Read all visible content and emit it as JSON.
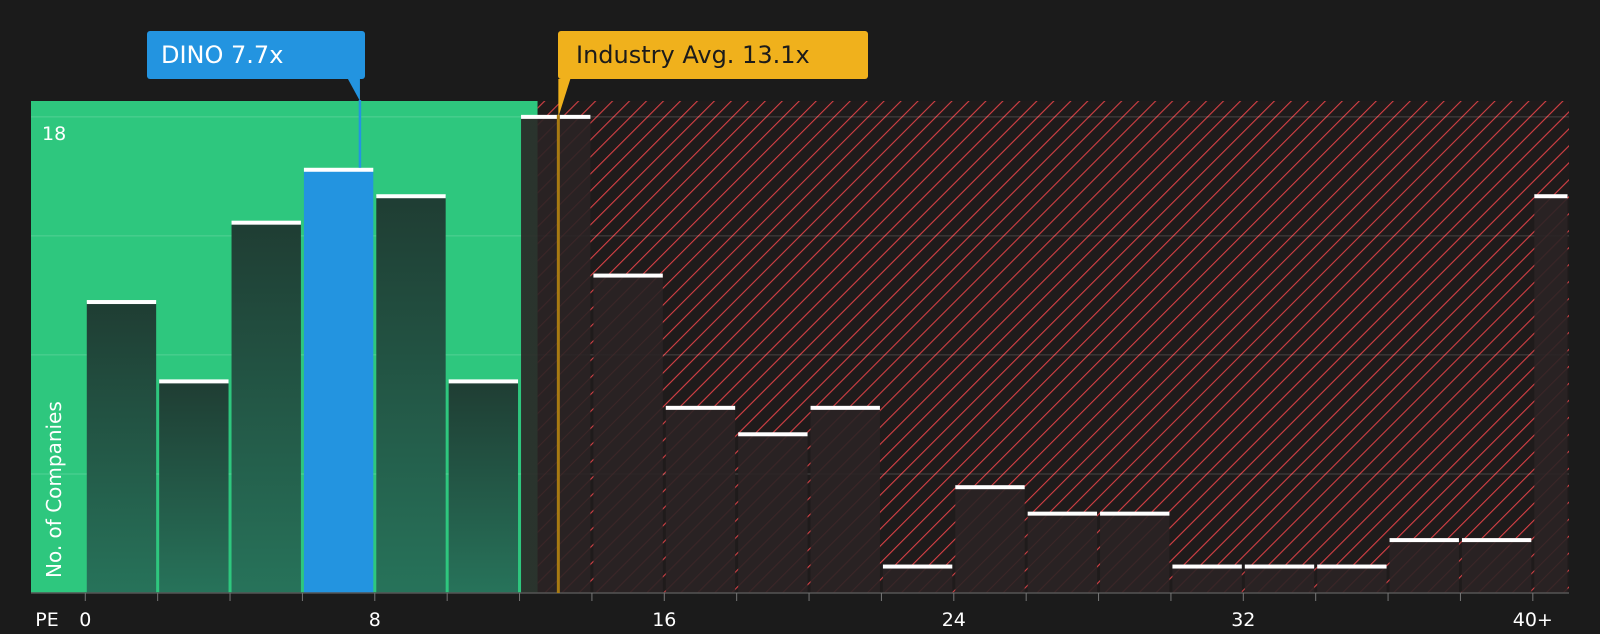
{
  "chart_data": {
    "type": "bar",
    "x_tick_labels": [
      "PE",
      "0",
      "8",
      "16",
      "24",
      "32",
      "40+"
    ],
    "bins": [
      {
        "x0": 0,
        "x1": 2,
        "count": 11
      },
      {
        "x0": 2,
        "x1": 4,
        "count": 8
      },
      {
        "x0": 4,
        "x1": 6,
        "count": 14
      },
      {
        "x0": 6,
        "x1": 8,
        "count": 16
      },
      {
        "x0": 8,
        "x1": 10,
        "count": 15
      },
      {
        "x0": 10,
        "x1": 12,
        "count": 8
      },
      {
        "x0": 12,
        "x1": 14,
        "count": 18
      },
      {
        "x0": 14,
        "x1": 16,
        "count": 12
      },
      {
        "x0": 16,
        "x1": 18,
        "count": 7
      },
      {
        "x0": 18,
        "x1": 20,
        "count": 6
      },
      {
        "x0": 20,
        "x1": 22,
        "count": 7
      },
      {
        "x0": 22,
        "x1": 24,
        "count": 1
      },
      {
        "x0": 24,
        "x1": 26,
        "count": 4
      },
      {
        "x0": 26,
        "x1": 28,
        "count": 3
      },
      {
        "x0": 28,
        "x1": 30,
        "count": 3
      },
      {
        "x0": 30,
        "x1": 32,
        "count": 1
      },
      {
        "x0": 32,
        "x1": 34,
        "count": 1
      },
      {
        "x0": 34,
        "x1": 36,
        "count": 1
      },
      {
        "x0": 36,
        "x1": 38,
        "count": 2
      },
      {
        "x0": 38,
        "x1": 40,
        "count": 2
      },
      {
        "x0": 40,
        "x1": 41,
        "count": 15
      }
    ],
    "highlight_bin_index": 3,
    "ylabel": "No. of Companies",
    "y_max_label": "18",
    "ylim": [
      0,
      18.6
    ],
    "xlim": [
      -1.5,
      41
    ],
    "company": {
      "label": "DINO 7.7x",
      "value": 7.7,
      "color": "#2394e0"
    },
    "industry": {
      "label": "Industry Avg. 13.1x",
      "value": 13.1,
      "color": "#f0b11c"
    },
    "colors": {
      "good_zone": "#2ec77e",
      "bad_zone_hatch": "#d64045",
      "bar_fill": "#1f3d33",
      "highlight_bar": "#2394e0",
      "bar_cap": "#ffffff",
      "background": "#1b1b1b"
    },
    "grid": true
  }
}
